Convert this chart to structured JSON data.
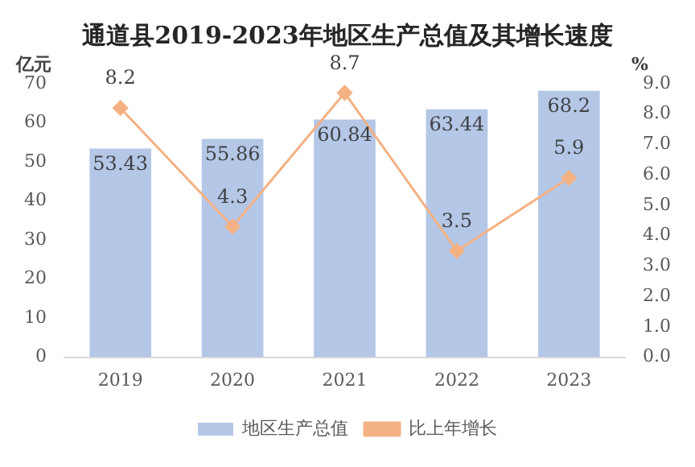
{
  "chart_data": {
    "type": "bar",
    "title": "通道县2019-2023年地区生产总值及其增长速度",
    "ylabel": "亿元",
    "y2label": "%",
    "categories": [
      "2019",
      "2020",
      "2021",
      "2022",
      "2023"
    ],
    "series": [
      {
        "name": "地区生产总值",
        "color": "#b4c7e7",
        "values": [
          53.43,
          55.86,
          60.84,
          63.44,
          68.2
        ]
      },
      {
        "name": "比上年增长",
        "type": "line",
        "axis": "y2",
        "color": "#f4b183",
        "values": [
          8.2,
          4.3,
          8.7,
          3.5,
          5.9
        ]
      }
    ],
    "ylim": [
      0,
      70
    ],
    "yticks": [
      0,
      10,
      20,
      30,
      40,
      50,
      60,
      70
    ],
    "y2lim": [
      0,
      9
    ],
    "y2ticks": [
      {
        "value": 0,
        "label": "0.0"
      },
      {
        "value": 1,
        "label": "1.0"
      },
      {
        "value": 2,
        "label": "2.0"
      },
      {
        "value": 3,
        "label": "3.0"
      },
      {
        "value": 4,
        "label": "4.0"
      },
      {
        "value": 5,
        "label": "5.0"
      },
      {
        "value": 6,
        "label": "6.0"
      },
      {
        "value": 7,
        "label": "7.0"
      },
      {
        "value": 8,
        "label": "8.0"
      },
      {
        "value": 9,
        "label": "9.0"
      }
    ],
    "data_labels": true,
    "grid": false,
    "legend": "bottom",
    "marker": "diamond",
    "line_style": "solid"
  }
}
